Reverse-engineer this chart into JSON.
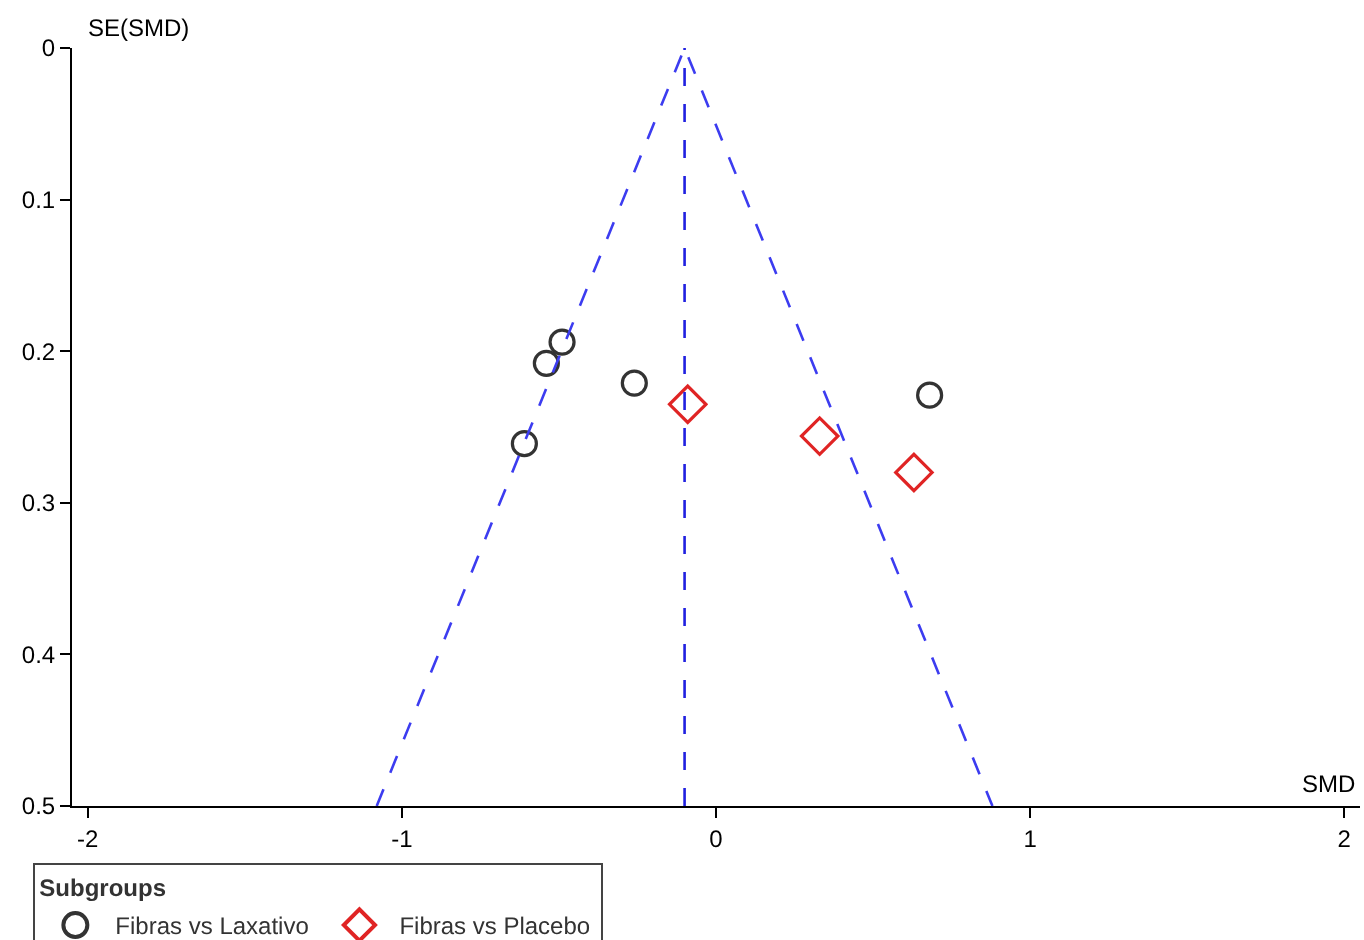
{
  "chart_data": {
    "type": "scatter",
    "xlabel": "SMD",
    "ylabel": "SE(SMD)",
    "legend_title": "Subgroups",
    "xlim": [
      -2.05,
      2.05
    ],
    "xticks": [
      -2,
      -1,
      0,
      1,
      2
    ],
    "ylim": [
      0.5,
      0
    ],
    "yticks": [
      0,
      0.1,
      0.2,
      0.3,
      0.4,
      0.5
    ],
    "legend": "bottom",
    "series": [
      {
        "name": "Fibras vs Laxativo",
        "marker": "circle",
        "color": "#333333",
        "x": [
          -0.49,
          -0.54,
          -0.26,
          -0.61,
          0.68
        ],
        "values": [
          0.194,
          0.208,
          0.221,
          0.261,
          0.229
        ]
      },
      {
        "name": "Fibras vs Placebo",
        "marker": "diamond",
        "color": "#e02424",
        "x": [
          -0.09,
          0.33,
          0.63
        ],
        "values": [
          0.235,
          0.256,
          0.28
        ]
      },
      {
        "type": "line",
        "color": "#3c3cf0",
        "line_style": "dashed",
        "marker": "none",
        "x": [
          -1.08,
          -0.1,
          0.88
        ],
        "values": [
          0.5,
          0,
          0.5
        ]
      }
    ],
    "ref_lines": [
      {
        "axis": "x",
        "value": -0.1,
        "color": "#2020e0",
        "line_style": "dashed"
      }
    ]
  }
}
